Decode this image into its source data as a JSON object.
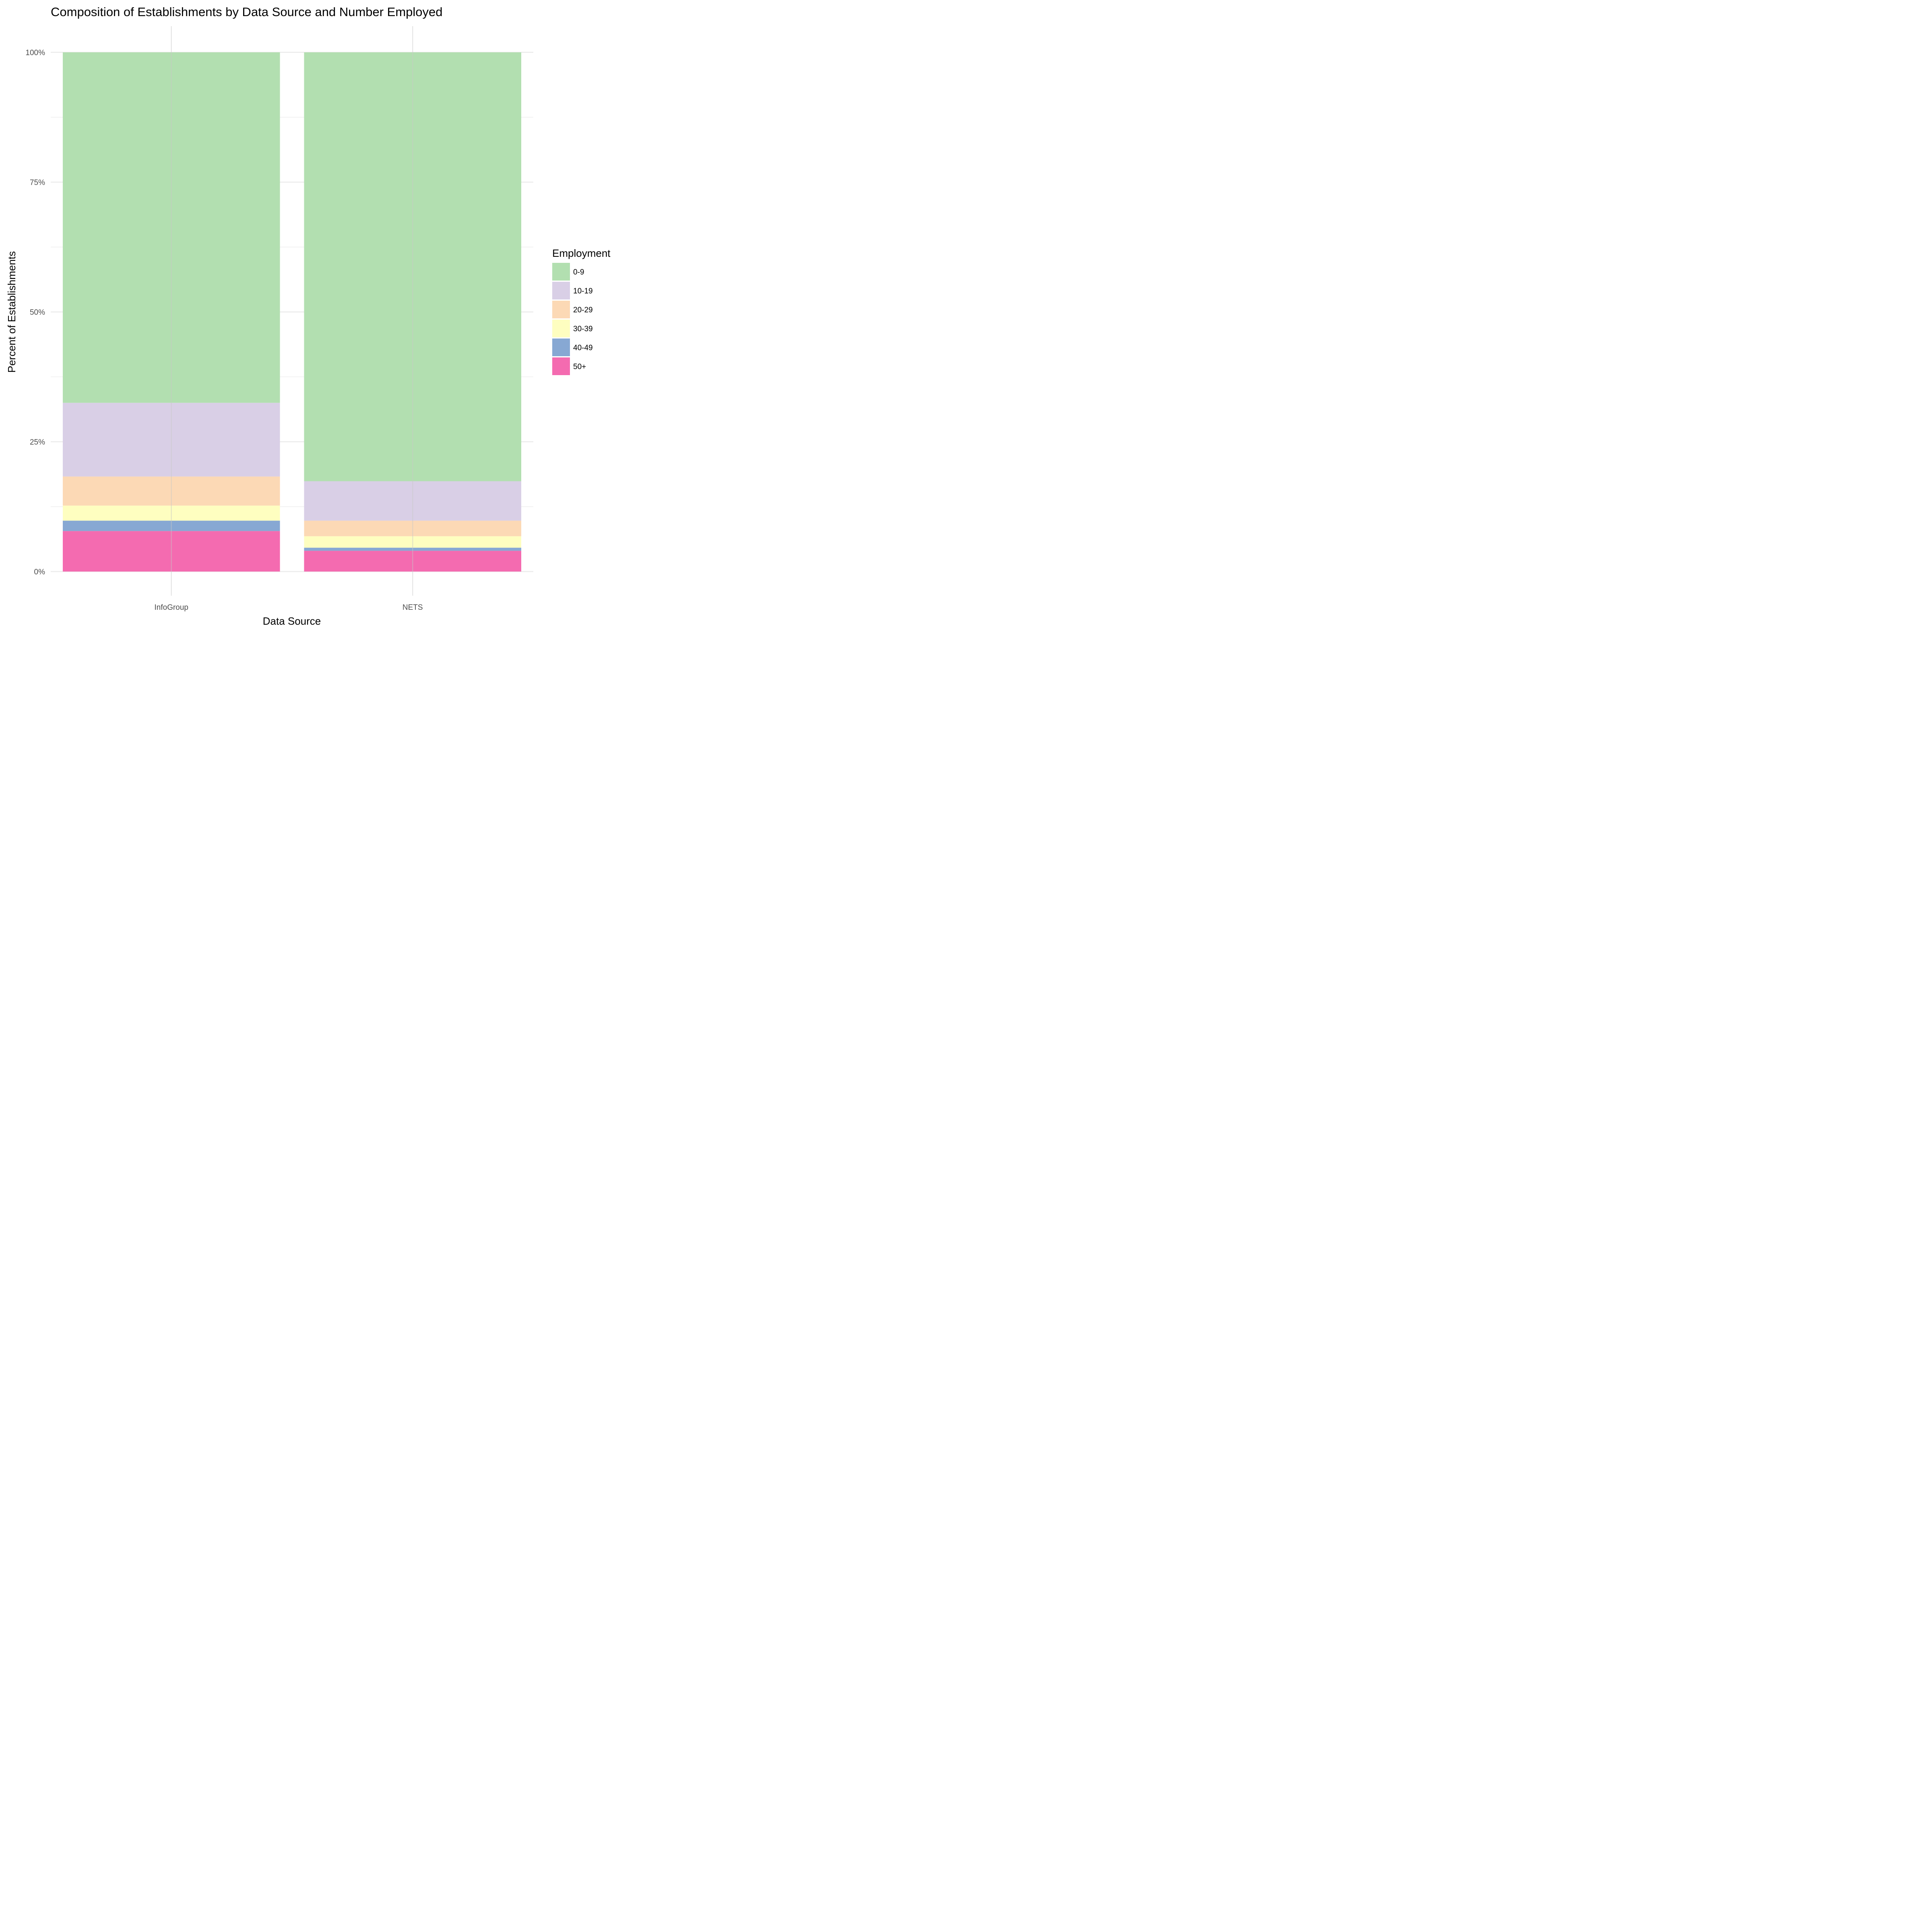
{
  "chart_data": {
    "type": "bar",
    "stacked": true,
    "title": "Composition of Establishments by Data Source and Number Employed",
    "xlabel": "Data Source",
    "ylabel": "Percent of Establishments",
    "categories": [
      "InfoGroup",
      "NETS"
    ],
    "ylim": [
      0,
      100
    ],
    "y_ticks": [
      0,
      25,
      50,
      75,
      100
    ],
    "y_tick_labels": [
      "0%",
      "25%",
      "50%",
      "75%",
      "100%"
    ],
    "legend_title": "Employment",
    "legend_position": "right",
    "grid": true,
    "series": [
      {
        "name": "0-9",
        "color": "#b2dfb0",
        "values": [
          67.5,
          82.6
        ]
      },
      {
        "name": "10-19",
        "color": "#d9cfe6",
        "values": [
          14.2,
          7.6
        ]
      },
      {
        "name": "20-29",
        "color": "#fcd9b5",
        "values": [
          5.6,
          3.0
        ]
      },
      {
        "name": "30-39",
        "color": "#fefec0",
        "values": [
          2.9,
          2.2
        ]
      },
      {
        "name": "40-49",
        "color": "#87a8d3",
        "values": [
          2.0,
          0.6
        ]
      },
      {
        "name": "50+",
        "color": "#f46bb0",
        "values": [
          7.8,
          4.0
        ]
      }
    ]
  }
}
